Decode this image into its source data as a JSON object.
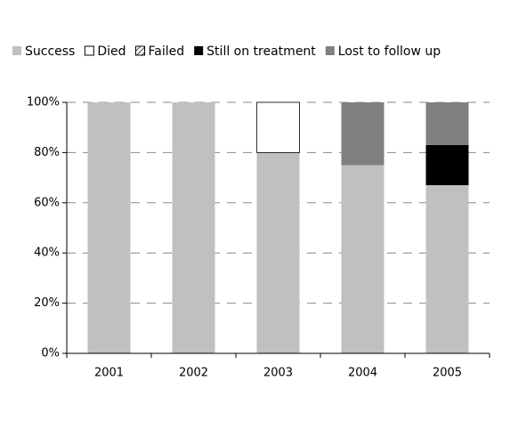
{
  "chart_data": {
    "type": "stacked_bar",
    "categories": [
      "2001",
      "2002",
      "2003",
      "2004",
      "2005"
    ],
    "series": [
      {
        "name": "Success",
        "color": "#c0c0c0",
        "values": [
          100,
          100,
          80,
          75,
          67
        ]
      },
      {
        "name": "Died",
        "color": "#ffffff",
        "values": [
          0,
          0,
          20,
          0,
          0
        ]
      },
      {
        "name": "Failed",
        "color": "#000000",
        "pattern": "hatch",
        "values": [
          0,
          0,
          0,
          0,
          0
        ]
      },
      {
        "name": "Still on treatment",
        "color": "#000000",
        "values": [
          0,
          0,
          0,
          0,
          16
        ]
      },
      {
        "name": "Lost to follow up",
        "color": "#808080",
        "values": [
          0,
          0,
          0,
          25,
          17
        ]
      }
    ],
    "ylim": [
      0,
      100
    ],
    "yticks": [
      {
        "value": 0,
        "label": "0%"
      },
      {
        "value": 20,
        "label": "20%"
      },
      {
        "value": 40,
        "label": "40%"
      },
      {
        "value": 60,
        "label": "60%"
      },
      {
        "value": 80,
        "label": "80%"
      },
      {
        "value": 100,
        "label": "100%"
      }
    ],
    "grid": true,
    "legend": "top"
  }
}
